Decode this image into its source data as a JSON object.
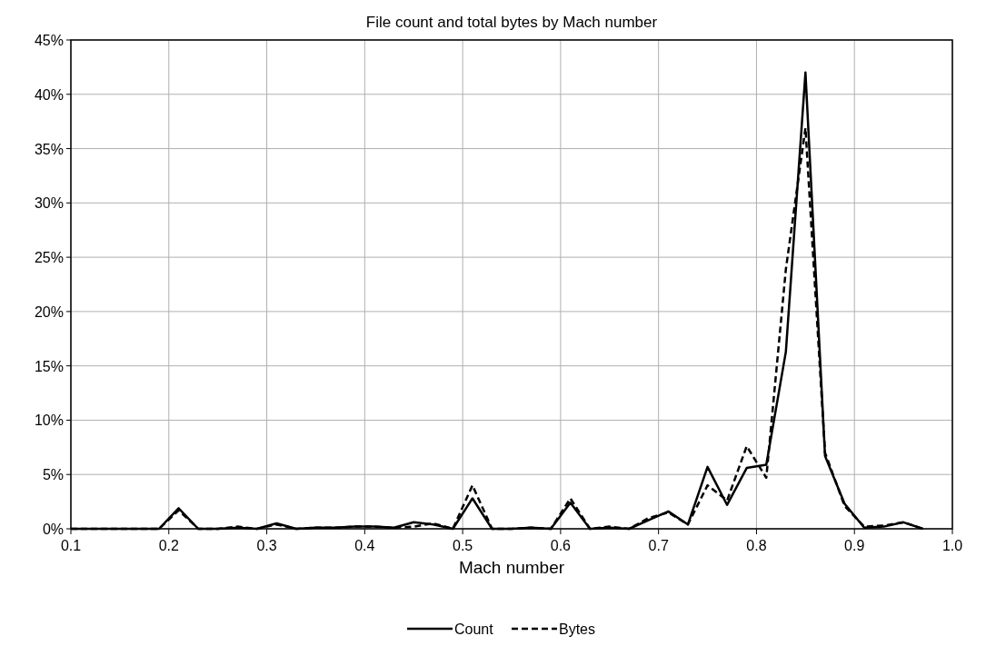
{
  "chart_data": {
    "type": "line",
    "title": "File count and total bytes by Mach number",
    "xlabel": "Mach number",
    "x": [
      0.1,
      0.11,
      0.13,
      0.15,
      0.17,
      0.19,
      0.21,
      0.23,
      0.25,
      0.27,
      0.29,
      0.31,
      0.33,
      0.35,
      0.37,
      0.39,
      0.41,
      0.43,
      0.45,
      0.47,
      0.49,
      0.51,
      0.53,
      0.55,
      0.57,
      0.59,
      0.61,
      0.63,
      0.65,
      0.67,
      0.69,
      0.71,
      0.73,
      0.75,
      0.77,
      0.79,
      0.81,
      0.83,
      0.85,
      0.87,
      0.89,
      0.91,
      0.93,
      0.95,
      0.97
    ],
    "series": [
      {
        "name": "Count",
        "color": "#000000",
        "line_style": "solid",
        "values": [
          0,
          0,
          0,
          0,
          0,
          0,
          1.9,
          0,
          0,
          0.1,
          0,
          0.5,
          0,
          0.1,
          0.1,
          0.2,
          0.2,
          0.1,
          0.6,
          0.4,
          0,
          2.8,
          0,
          0,
          0.1,
          0,
          2.4,
          0,
          0.1,
          0,
          0.8,
          1.6,
          0.4,
          5.7,
          2.2,
          5.6,
          5.9,
          16.3,
          42,
          6.7,
          2.3,
          0.1,
          0.2,
          0.6,
          0
        ]
      },
      {
        "name": "Bytes",
        "color": "#000000",
        "line_style": "dashed",
        "values": [
          0,
          0,
          0,
          0,
          0,
          0,
          1.7,
          0,
          0,
          0.2,
          0,
          0.4,
          0,
          0.1,
          0.1,
          0.2,
          0.2,
          0.1,
          0.2,
          0.5,
          0,
          4.0,
          0,
          0,
          0.1,
          0,
          2.8,
          0,
          0.2,
          0,
          1.0,
          1.5,
          0.4,
          4.0,
          2.6,
          7.6,
          4.7,
          23.9,
          36.9,
          7.0,
          2.1,
          0.2,
          0.3,
          0.6,
          0
        ]
      }
    ],
    "xlim": [
      0.1,
      1.0
    ],
    "xticks": [
      {
        "value": 0.1,
        "label": "0.1"
      },
      {
        "value": 0.2,
        "label": "0.2"
      },
      {
        "value": 0.3,
        "label": "0.3"
      },
      {
        "value": 0.4,
        "label": "0.4"
      },
      {
        "value": 0.5,
        "label": "0.5"
      },
      {
        "value": 0.6,
        "label": "0.6"
      },
      {
        "value": 0.7,
        "label": "0.7"
      },
      {
        "value": 0.8,
        "label": "0.8"
      },
      {
        "value": 0.9,
        "label": "0.9"
      },
      {
        "value": 1.0,
        "label": "1.0"
      }
    ],
    "ylim": [
      0,
      45
    ],
    "yticks": [
      {
        "value": 0,
        "label": "0%"
      },
      {
        "value": 5,
        "label": "5%"
      },
      {
        "value": 10,
        "label": "10%"
      },
      {
        "value": 15,
        "label": "15%"
      },
      {
        "value": 20,
        "label": "20%"
      },
      {
        "value": 25,
        "label": "25%"
      },
      {
        "value": 30,
        "label": "30%"
      },
      {
        "value": 35,
        "label": "35%"
      },
      {
        "value": 40,
        "label": "40%"
      },
      {
        "value": 45,
        "label": "45%"
      }
    ],
    "grid": true,
    "legend": "bottom",
    "marker": "none"
  }
}
